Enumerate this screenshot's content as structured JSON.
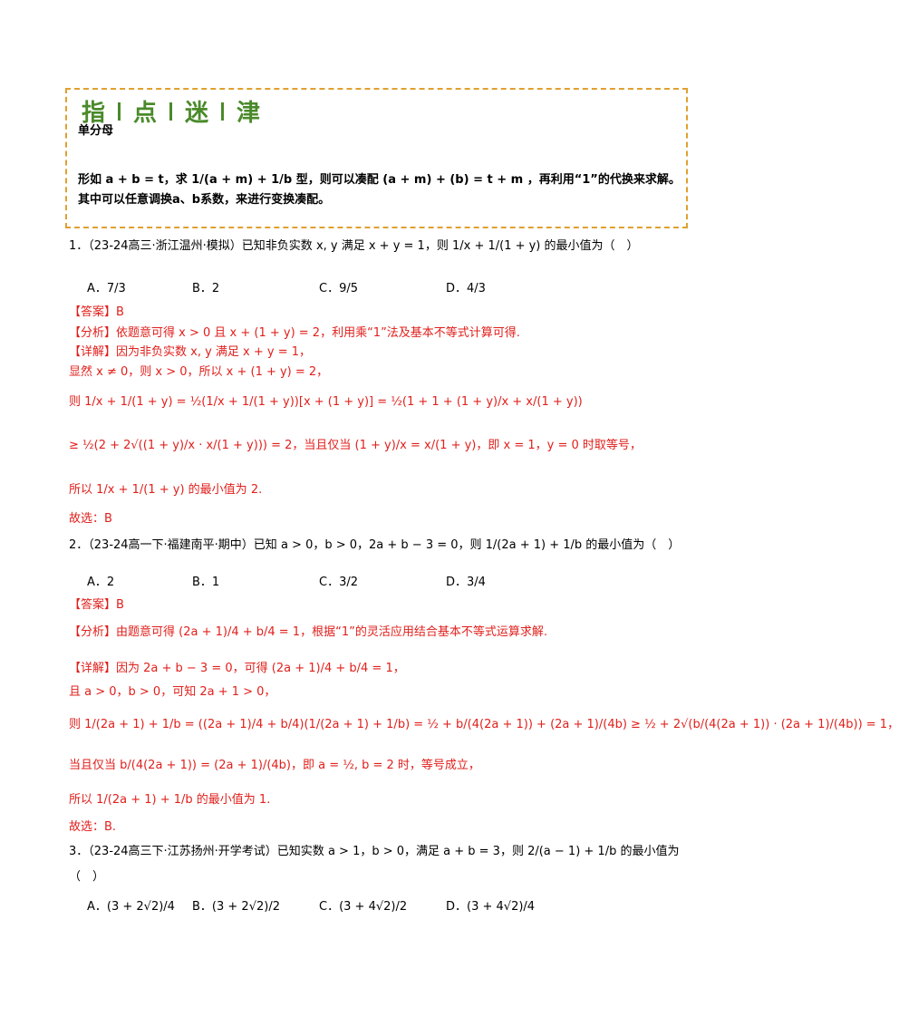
{
  "tip": {
    "title": [
      "指",
      "点",
      "迷",
      "津"
    ],
    "heading": "单分母",
    "lines": [
      "形如 a + b = t，求 1/(a + m) + 1/b 型，则可以凑配 (a + m) + (b) = t + m ，再利用“1”的代换来求解。",
      "其中可以任意调换a、b系数，来进行变换凑配。"
    ]
  },
  "questions": [
    {
      "stem": "1．（23-24高三·浙江温州·模拟）已知非负实数 x, y 满足 x + y = 1，则 1/x + 1/(1 + y) 的最小值为（　）",
      "options": [
        "A．7/3",
        "B．2",
        "C．9/5",
        "D．4/3"
      ],
      "answer": "【答案】B",
      "analysis": "【分析】依题意可得 x > 0 且 x + (1 + y) = 2，利用乘“1”法及基本不等式计算可得.",
      "detail": [
        "【详解】因为非负实数 x, y 满足 x + y = 1，",
        "显然 x ≠ 0，则 x > 0，所以 x + (1 + y) = 2，",
        "则 1/x + 1/(1 + y) = ½(1/x + 1/(1 + y))[x + (1 + y)] = ½(1 + 1 + (1 + y)/x + x/(1 + y))",
        "≥ ½(2 + 2√((1 + y)/x · x/(1 + y))) = 2，当且仅当 (1 + y)/x = x/(1 + y)，即 x = 1，y = 0 时取等号，",
        "所以 1/x + 1/(1 + y) 的最小值为 2."
      ],
      "choice": "故选：B"
    },
    {
      "stem": "2．（23-24高一下·福建南平·期中）已知 a > 0，b > 0，2a + b − 3 = 0，则 1/(2a + 1) + 1/b 的最小值为（　）",
      "options": [
        "A．2",
        "B．1",
        "C．3/2",
        "D．3/4"
      ],
      "answer": "【答案】B",
      "analysis": "【分析】由题意可得 (2a + 1)/4 + b/4 = 1，根据“1”的灵活应用结合基本不等式运算求解.",
      "detail": [
        "【详解】因为 2a + b − 3 = 0，可得 (2a + 1)/4 + b/4 = 1，",
        "且 a > 0，b > 0，可知 2a + 1 > 0，",
        "则 1/(2a + 1) + 1/b = ((2a + 1)/4 + b/4)(1/(2a + 1) + 1/b) = ½ + b/(4(2a + 1)) + (2a + 1)/(4b) ≥ ½ + 2√(b/(4(2a + 1)) · (2a + 1)/(4b)) = 1，",
        "当且仅当 b/(4(2a + 1)) = (2a + 1)/(4b)，即 a = ½, b = 2 时，等号成立，",
        "所以 1/(2a + 1) + 1/b 的最小值为 1."
      ],
      "choice": "故选：B."
    },
    {
      "stem": "3．（23-24高三下·江苏扬州·开学考试）已知实数 a > 1，b > 0，满足 a + b = 3，则 2/(a − 1) + 1/b 的最小值为",
      "stem2": "（　）",
      "options": [
        "A．(3 + 2√2)/4",
        "B．(3 + 2√2)/2",
        "C．(3 + 4√2)/2",
        "D．(3 + 4√2)/4"
      ]
    }
  ]
}
